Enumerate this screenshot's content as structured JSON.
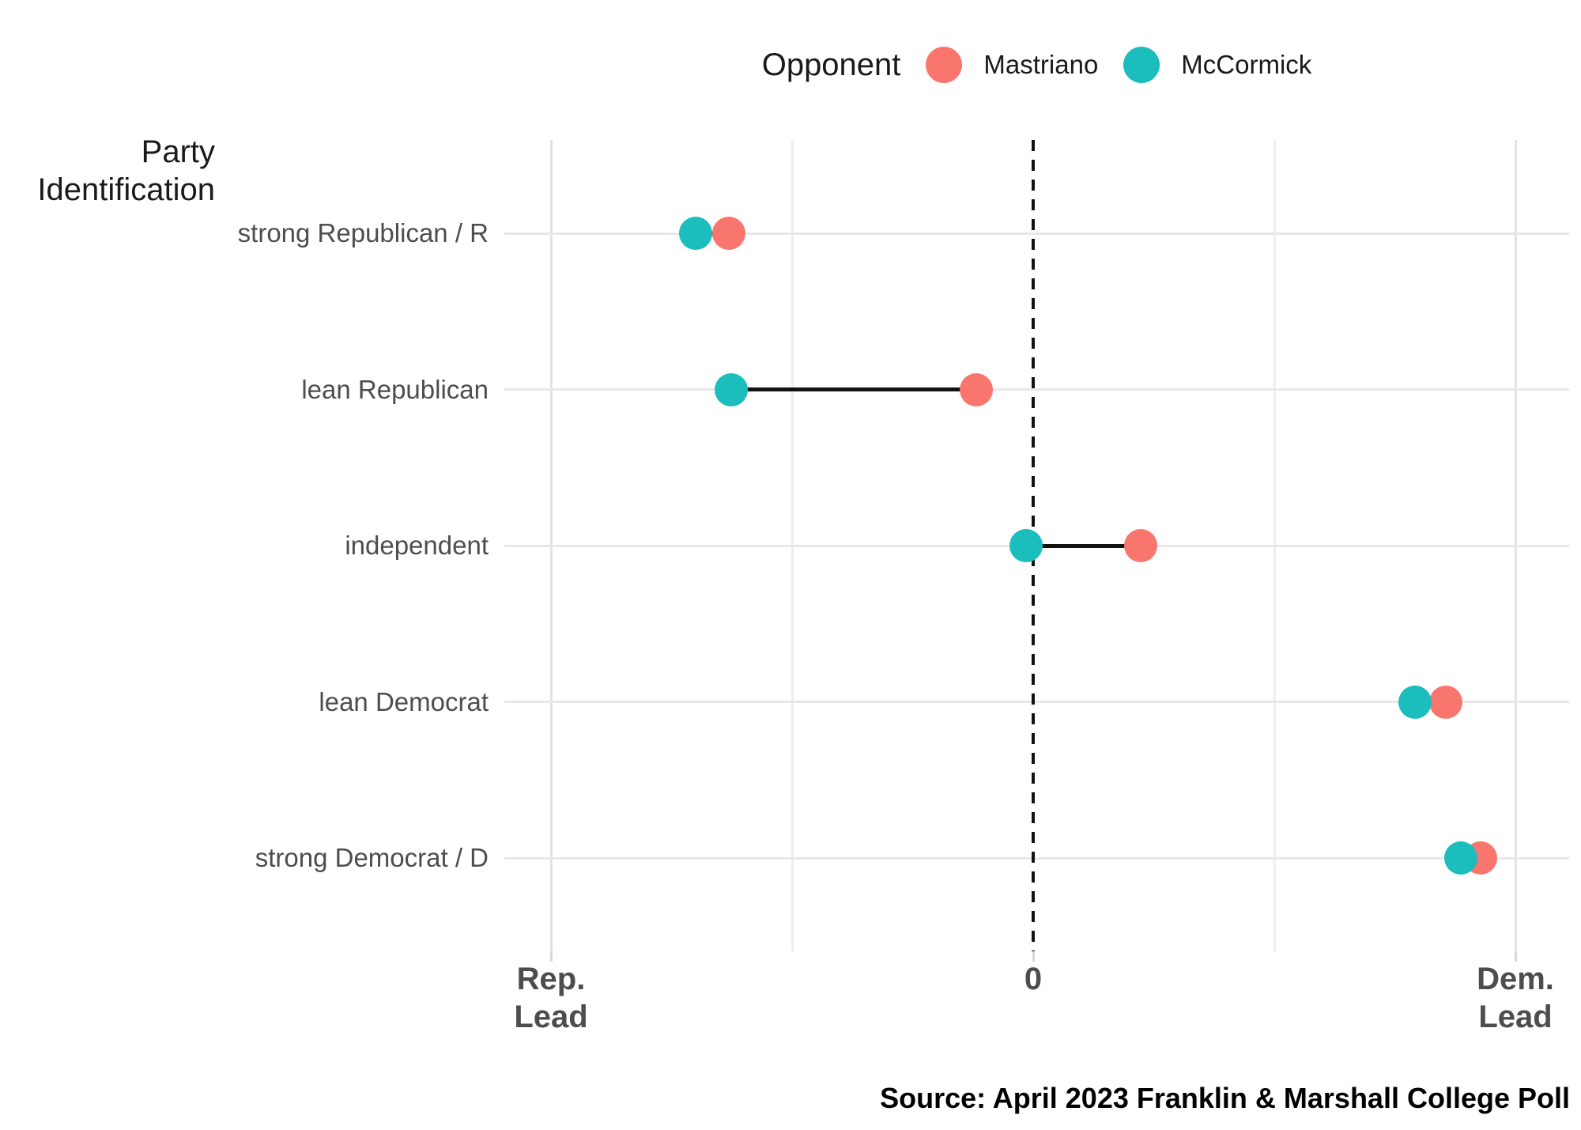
{
  "legend": {
    "title": "Opponent",
    "items": [
      {
        "label": "Mastriano",
        "color": "#F8766D"
      },
      {
        "label": "McCormick",
        "color": "#1BBDBD"
      }
    ]
  },
  "y_axis_title": {
    "line1": "Party",
    "line2": "Identification"
  },
  "x_axis": {
    "left": "Rep.\nLead",
    "zero": "0",
    "right": "Dem.\nLead"
  },
  "source": "Source: April 2023 Franklin & Marshall College Poll",
  "chart_data": {
    "type": "scatter",
    "subtype": "dumbbell-dot-plot",
    "title": "",
    "categories": [
      "strong Republican / R",
      "lean Republican",
      "independent",
      "lean Democrat",
      "strong Democrat / D"
    ],
    "series": [
      {
        "name": "Mastriano",
        "color": "#F8766D",
        "values": [
          -0.631,
          -0.118,
          0.223,
          0.856,
          0.928
        ]
      },
      {
        "name": "McCormick",
        "color": "#1BBDBD",
        "values": [
          -0.7,
          -0.626,
          -0.015,
          0.792,
          0.887
        ]
      }
    ],
    "x_units": "normalized lead: -1 at 'Rep. Lead' tick, 0 = even, +1 at 'Dem. Lead' tick",
    "xlim": [
      -1.1,
      1.11
    ],
    "x_tick_positions": [
      -1,
      0,
      1
    ],
    "x_tick_labels": [
      "Rep.\nLead",
      "0",
      "Dem.\nLead"
    ],
    "x_minor_gridlines": [
      -0.5,
      0.5
    ],
    "x_major_gridlines": [
      -1,
      1
    ],
    "zero_line": {
      "x": 0,
      "style": "dashed",
      "color": "#111111"
    },
    "connector_color": "#111111",
    "grid": true,
    "legend_position": "top-center",
    "ylabel": "Party Identification",
    "source": "Source: April 2023 Franklin & Marshall College Poll"
  }
}
